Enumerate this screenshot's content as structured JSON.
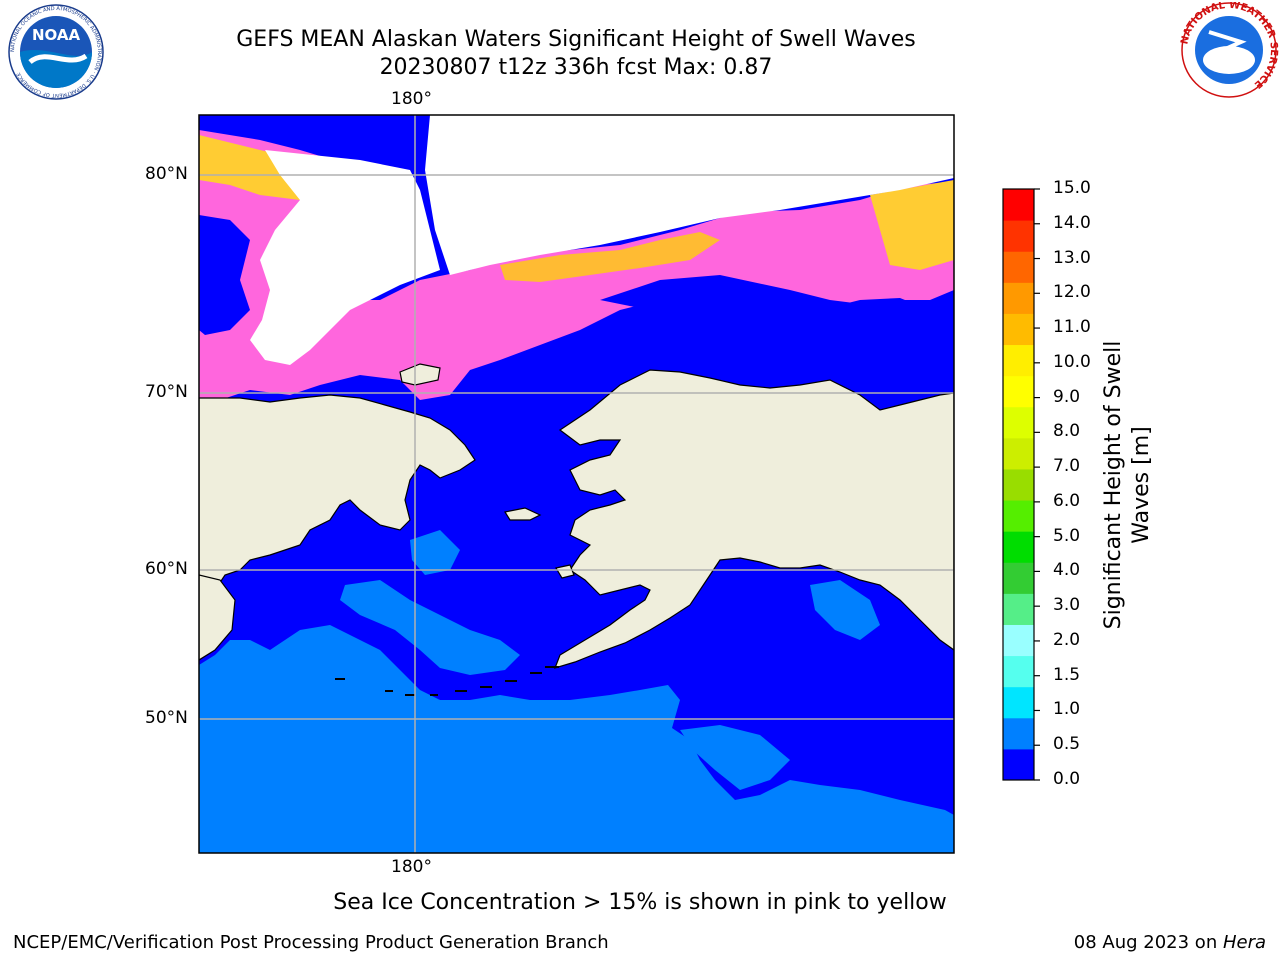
{
  "header": {
    "title_line1": "GEFS MEAN Alaskan Waters Significant Height of Swell Waves",
    "title_line2": "20230807 t12z 336h fcst   Max: 0.87"
  },
  "logos": {
    "left": {
      "name": "noaa-logo",
      "text": "NOAA",
      "ring_text": "NATIONAL OCEANIC AND ATMOSPHERIC ADMINISTRATION · U.S. DEPARTMENT OF COMMERCE"
    },
    "right": {
      "name": "nws-logo",
      "ring_text": "NATIONAL WEATHER SERVICE"
    }
  },
  "map": {
    "lon_labels": {
      "top": "180°",
      "bottom": "180°"
    },
    "lat_labels": [
      "80°N",
      "70°N",
      "60°N",
      "50°N"
    ],
    "colors": {
      "land": "#efeedc",
      "wave_0_0.5": "#0000ff",
      "wave_0.5_1.0": "#0080ff",
      "ice_pink": "#ff66dd",
      "ice_yellow": "#ffcc33",
      "grid": "#b0b0b0"
    }
  },
  "colorbar": {
    "title": "Significant Height of Swell Waves [m]",
    "ticks": [
      "15.0",
      "14.0",
      "13.0",
      "12.0",
      "11.0",
      "10.0",
      "9.0",
      "8.0",
      "7.0",
      "6.0",
      "5.0",
      "4.0",
      "3.0",
      "2.0",
      "1.5",
      "1.0",
      "0.5",
      "0.0"
    ],
    "colors": [
      "#0000ff",
      "#0080ff",
      "#00e5ff",
      "#55ffee",
      "#99ffff",
      "#55ee88",
      "#33cc33",
      "#00dd00",
      "#55ee00",
      "#99dd00",
      "#ccee00",
      "#ddff00",
      "#ffff00",
      "#ffee00",
      "#ffbb00",
      "#ff9900",
      "#ff6600",
      "#ff3300",
      "#ff0000"
    ]
  },
  "note": "Sea Ice Concentration > 15% is shown in pink to yellow",
  "footer": {
    "left": "NCEP/EMC/Verification Post Processing Product Generation Branch",
    "right_date": "08 Aug 2023 on ",
    "right_host": "Hera"
  }
}
